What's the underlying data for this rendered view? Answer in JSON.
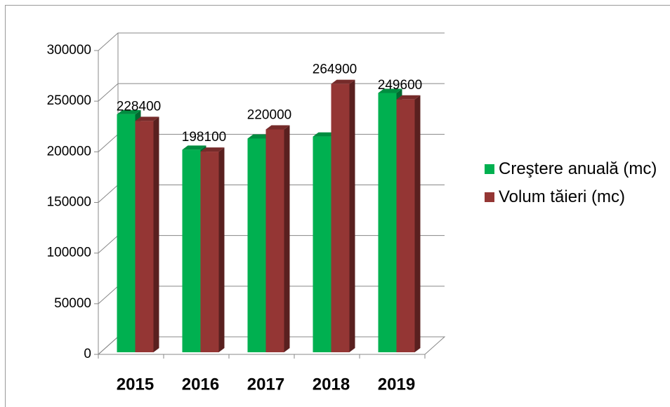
{
  "chart_data": {
    "type": "bar3d",
    "categories": [
      "2015",
      "2016",
      "2017",
      "2018",
      "2019"
    ],
    "series": [
      {
        "name": "Creştere anuală (mc)",
        "color": "#00b050",
        "values": [
          235000,
          200000,
          211000,
          213000,
          256000
        ],
        "labels": false
      },
      {
        "name": "Volum tăieri (mc)",
        "color": "#943634",
        "values": [
          228400,
          198100,
          220000,
          264900,
          249600
        ],
        "labels": true
      }
    ],
    "ylim": [
      0,
      300000
    ],
    "yticks": [
      0,
      50000,
      100000,
      150000,
      200000,
      250000,
      300000
    ],
    "grid": true,
    "legend": "right"
  }
}
